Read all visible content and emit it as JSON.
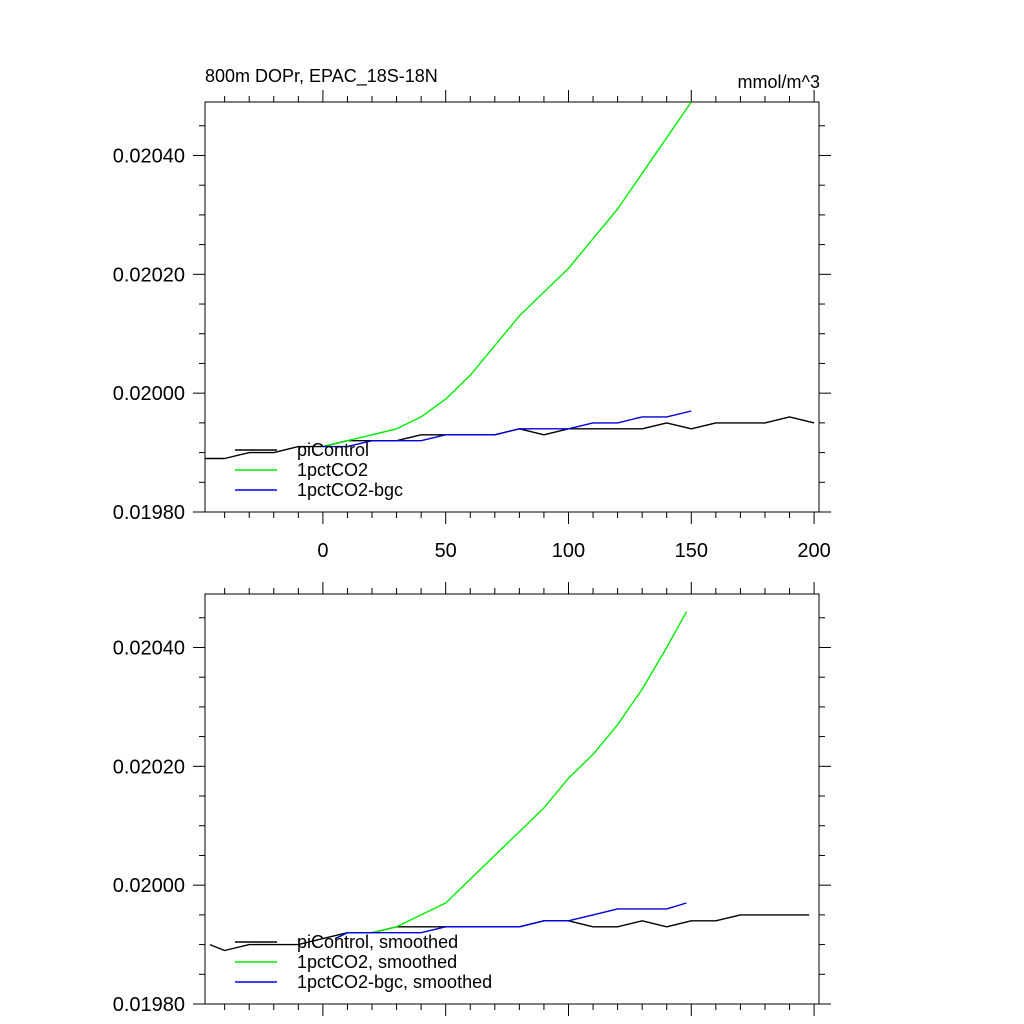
{
  "chart_data": [
    {
      "type": "line",
      "title": "800m DOPr, EPAC_18S-18N",
      "units": "mmol/m^3",
      "xlim": [
        -48,
        202
      ],
      "ylim": [
        0.0198,
        0.02049
      ],
      "xticks": [
        0,
        50,
        100,
        150,
        200
      ],
      "xtick_labels": [
        "0",
        "50",
        "100",
        "150",
        "200"
      ],
      "yticks": [
        0.0198,
        0.02,
        0.0202,
        0.0204
      ],
      "ytick_labels": [
        "0.01980",
        "0.02000",
        "0.02020",
        "0.02040"
      ],
      "legend": "lower-left",
      "series": [
        {
          "name": "piControl",
          "color": "#000000",
          "x": [
            -48,
            -40,
            -30,
            -20,
            -10,
            0,
            10,
            20,
            30,
            40,
            50,
            60,
            70,
            80,
            90,
            100,
            110,
            120,
            130,
            140,
            150,
            160,
            170,
            180,
            190,
            200
          ],
          "values": [
            0.01989,
            0.01989,
            0.0199,
            0.0199,
            0.01991,
            0.01991,
            0.01992,
            0.01992,
            0.01992,
            0.01993,
            0.01993,
            0.01993,
            0.01993,
            0.01994,
            0.01993,
            0.01994,
            0.01994,
            0.01994,
            0.01994,
            0.01995,
            0.01994,
            0.01995,
            0.01995,
            0.01995,
            0.01996,
            0.01995
          ]
        },
        {
          "name": "1pctCO2",
          "color": "#00ee00",
          "x": [
            0,
            10,
            20,
            30,
            40,
            50,
            60,
            70,
            80,
            90,
            100,
            110,
            120,
            130,
            140,
            150
          ],
          "values": [
            0.01991,
            0.01992,
            0.01993,
            0.01994,
            0.01996,
            0.01999,
            0.02003,
            0.02008,
            0.02013,
            0.02017,
            0.02021,
            0.02026,
            0.02031,
            0.02037,
            0.02043,
            0.02049
          ]
        },
        {
          "name": "1pctCO2-bgc",
          "color": "#0000dd",
          "x": [
            0,
            10,
            20,
            30,
            40,
            50,
            60,
            70,
            80,
            90,
            100,
            110,
            120,
            130,
            140,
            150
          ],
          "values": [
            0.01991,
            0.01991,
            0.01992,
            0.01992,
            0.01992,
            0.01993,
            0.01993,
            0.01993,
            0.01994,
            0.01994,
            0.01994,
            0.01995,
            0.01995,
            0.01996,
            0.01996,
            0.01997
          ]
        }
      ]
    },
    {
      "type": "line",
      "xlim": [
        -48,
        202
      ],
      "ylim": [
        0.0198,
        0.02049
      ],
      "xticks": [
        0,
        50,
        100,
        150,
        200
      ],
      "yticks": [
        0.0198,
        0.02,
        0.0202,
        0.0204
      ],
      "ytick_labels": [
        "0.01980",
        "0.02000",
        "0.02020",
        "0.02040"
      ],
      "legend": "lower-left",
      "series": [
        {
          "name": "piControl, smoothed",
          "color": "#000000",
          "x": [
            -46,
            -40,
            -30,
            -20,
            -10,
            0,
            10,
            20,
            30,
            40,
            50,
            60,
            70,
            80,
            90,
            100,
            110,
            120,
            130,
            140,
            150,
            160,
            170,
            180,
            190,
            198
          ],
          "values": [
            0.0199,
            0.01989,
            0.0199,
            0.0199,
            0.0199,
            0.01991,
            0.01992,
            0.01992,
            0.01993,
            0.01993,
            0.01993,
            0.01993,
            0.01993,
            0.01993,
            0.01994,
            0.01994,
            0.01993,
            0.01993,
            0.01994,
            0.01993,
            0.01994,
            0.01994,
            0.01995,
            0.01995,
            0.01995,
            0.01995
          ]
        },
        {
          "name": "1pctCO2, smoothed",
          "color": "#00ee00",
          "x": [
            5,
            10,
            20,
            30,
            40,
            50,
            60,
            70,
            80,
            90,
            100,
            110,
            120,
            130,
            140,
            148
          ],
          "values": [
            0.01991,
            0.01992,
            0.01992,
            0.01993,
            0.01995,
            0.01997,
            0.02001,
            0.02005,
            0.02009,
            0.02013,
            0.02018,
            0.02022,
            0.02027,
            0.02033,
            0.0204,
            0.02046
          ]
        },
        {
          "name": "1pctCO2-bgc, smoothed",
          "color": "#0000dd",
          "x": [
            5,
            10,
            20,
            30,
            40,
            50,
            60,
            70,
            80,
            90,
            100,
            110,
            120,
            130,
            140,
            148
          ],
          "values": [
            0.01991,
            0.01992,
            0.01992,
            0.01992,
            0.01992,
            0.01993,
            0.01993,
            0.01993,
            0.01993,
            0.01994,
            0.01994,
            0.01995,
            0.01996,
            0.01996,
            0.01996,
            0.01997
          ]
        }
      ]
    }
  ]
}
